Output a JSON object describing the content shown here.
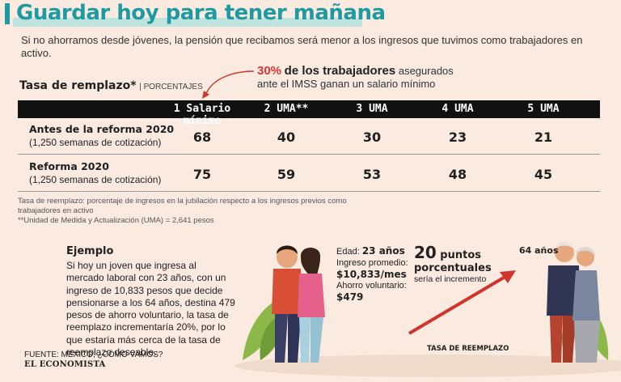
{
  "title": "Guardar hoy para tener mañana",
  "subtitle": "Si no ahorramos desde jóvenes, la pensión que recibamos será menor a los ingresos que tuvimos como trabajadores en activo.",
  "highlight": {
    "pct": "30%",
    "bold": "de los trabajadores",
    "rest1": "asegurados",
    "rest2": "ante el IMSS ganan un salario mínimo"
  },
  "table": {
    "title": "Tasa de remplazo*",
    "unit": "| PORCENTAJES",
    "columns": [
      "1 Salario mínimo",
      "2 UMA**",
      "3 UMA",
      "4 UMA",
      "5 UMA"
    ],
    "rows": [
      {
        "label": "Antes de la reforma 2020",
        "sub": "(1,250 semanas de cotización)",
        "values": [
          "68",
          "40",
          "30",
          "23",
          "21"
        ]
      },
      {
        "label": "Reforma 2020",
        "sub": "(1,250 semanas de cotización)",
        "values": [
          "75",
          "59",
          "53",
          "48",
          "45"
        ]
      }
    ]
  },
  "notes": {
    "n1": "Tasa de reemplazo: porcentaje de ingresos en la jubilación respecto a los ingresos previos como trabajadores en activo",
    "n2": "**Unidad de Medida y Actualización (UMA) = 2,641 pesos"
  },
  "example": {
    "title": "Ejemplo",
    "text": "Si hoy un joven que ingresa al mercado laboral con 23 años, con un ingreso de 10,833 pesos que decide pensionarse a los 64 años, destina 479 pesos de ahorro voluntario, la tasa de reemplazo incrementaría 20%, por lo que estaría más cerca de la tasa de reemplazo deseable."
  },
  "young": {
    "edad_label": "Edad:",
    "edad_value": "23 años",
    "ingreso_label": "Ingreso promedio:",
    "ingreso_value": "$10,833/mes",
    "ahorro_label": "Ahorro voluntario:",
    "ahorro_value": "$479"
  },
  "increment": {
    "number": "20",
    "unit": "puntos",
    "line2": "porcentuales",
    "line3": "sería el incremento",
    "age": "64 años",
    "axis": "TASA DE REEMPLAZO"
  },
  "source": "FUENTE: MÉXICO, ¿CÓMO VAMOS?",
  "brand": "EL ECONOMISTA",
  "colors": {
    "accent": "#1d9aa2",
    "red": "#e0322f",
    "bg": "#fbeadf"
  }
}
